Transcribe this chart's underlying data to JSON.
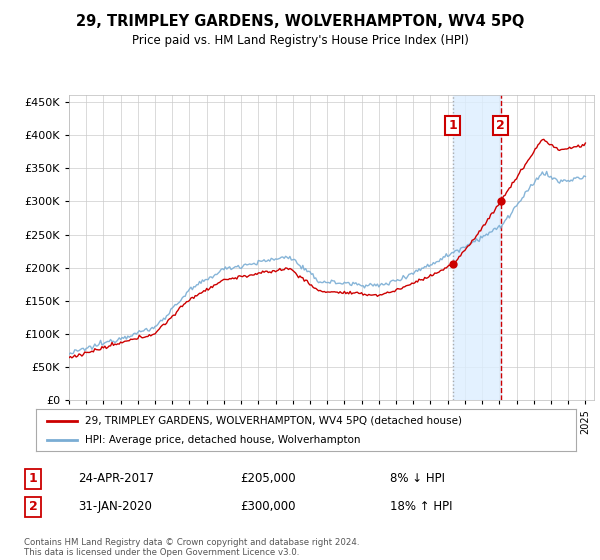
{
  "title": "29, TRIMPLEY GARDENS, WOLVERHAMPTON, WV4 5PQ",
  "subtitle": "Price paid vs. HM Land Registry's House Price Index (HPI)",
  "legend_line1": "29, TRIMPLEY GARDENS, WOLVERHAMPTON, WV4 5PQ (detached house)",
  "legend_line2": "HPI: Average price, detached house, Wolverhampton",
  "sale1_date": "24-APR-2017",
  "sale1_price": "£205,000",
  "sale1_hpi": "8% ↓ HPI",
  "sale2_date": "31-JAN-2020",
  "sale2_price": "£300,000",
  "sale2_hpi": "18% ↑ HPI",
  "footer": "Contains HM Land Registry data © Crown copyright and database right 2024.\nThis data is licensed under the Open Government Licence v3.0.",
  "sale1_year": 2017.3,
  "sale1_value": 205000,
  "sale2_year": 2020.08,
  "sale2_value": 300000,
  "hpi_color": "#7aadd4",
  "price_color": "#cc0000",
  "shade_color": "#ddeeff",
  "grid_color": "#cccccc",
  "bg_color": "#ffffff",
  "ylim": [
    0,
    460000
  ],
  "xlim_start": 1995,
  "xlim_end": 2025.5
}
